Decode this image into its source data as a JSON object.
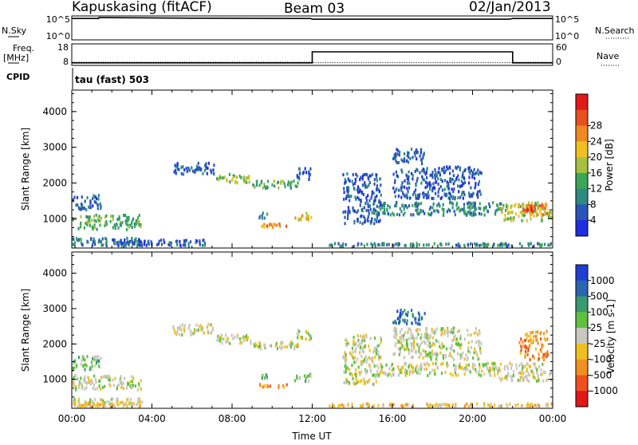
{
  "header": {
    "station": "Kapuskasing (fitACF)",
    "beam": "Beam 03",
    "date": "02/Jan/2013"
  },
  "top_panels": {
    "nsky_label": "N.Sky",
    "nsky_ticks": [
      "10^5",
      "10^0"
    ],
    "nsearch_label": "N.Search",
    "nsearch_ticks": [
      "10^5",
      "10^0"
    ],
    "freq_label_1": "Freq.",
    "freq_label_2": "[MHz]",
    "freq_ticks": [
      "18",
      "8"
    ],
    "nave_label": "Nave",
    "nave_ticks": [
      "60",
      "0"
    ],
    "cpid_label": "CPID",
    "cpid_text": "tau (fast) 503"
  },
  "colors": {
    "power_scale": [
      "#1f2ee0",
      "#2a55b8",
      "#2f8a82",
      "#3aa658",
      "#a8c040",
      "#f0c020",
      "#f08a20",
      "#e85020",
      "#e01a1a"
    ],
    "velocity_scale": [
      "#1e3fd0",
      "#2c66b0",
      "#3a9a70",
      "#60c040",
      "#c8c8c0",
      "#f0c020",
      "#f09020",
      "#f05020",
      "#e01818"
    ]
  },
  "chart_data": [
    {
      "type": "line",
      "title": "N.Sky / N.Search",
      "x": [
        "00:00",
        "01:20",
        "01:21",
        "06:00",
        "11:55",
        "12:00",
        "21:50",
        "22:00",
        "24:00"
      ],
      "series": [
        {
          "name": "N.Sky",
          "values": [
            60000,
            60000,
            100000,
            70000,
            60000,
            40000,
            40000,
            60000,
            60000
          ]
        }
      ]
    },
    {
      "type": "line",
      "title": "Freq. / Nave",
      "x": [
        "00:00",
        "12:00",
        "12:00",
        "22:00",
        "22:00",
        "24:00"
      ],
      "series": [
        {
          "name": "Freq.",
          "values": [
            8.5,
            8.5,
            14.5,
            14.5,
            8.5,
            8.5
          ]
        },
        {
          "name": "Nave",
          "values": [
            5,
            5,
            4,
            4,
            5,
            5
          ]
        }
      ]
    },
    {
      "type": "heatmap",
      "xlabel": "Time UT",
      "ylabel": "Slant Range [km]",
      "xticks": [
        "00:00",
        "04:00",
        "08:00",
        "12:00",
        "16:00",
        "20:00",
        "00:00"
      ],
      "yticks": [
        "1000",
        "2000",
        "3000",
        "4000"
      ],
      "xlim": [
        0,
        24
      ],
      "ylim": [
        180,
        4600
      ],
      "colorbar": {
        "label": "Power [dB]",
        "ticks": [
          "4",
          "8",
          "12",
          "16",
          "20",
          "24",
          "28"
        ]
      },
      "regions": [
        {
          "t0": 0.0,
          "t1": 3.5,
          "r0": 650,
          "r1": 1150,
          "level": 3
        },
        {
          "t0": 0.0,
          "t1": 3.6,
          "r0": 180,
          "r1": 500,
          "level": 2
        },
        {
          "t0": 0.0,
          "t1": 1.5,
          "r0": 1200,
          "r1": 1700,
          "level": 1
        },
        {
          "t0": 2.0,
          "t1": 7.0,
          "r0": 180,
          "r1": 450,
          "level": 1
        },
        {
          "t0": 5.0,
          "t1": 7.2,
          "r0": 2200,
          "r1": 2600,
          "level": 1
        },
        {
          "t0": 7.2,
          "t1": 9.0,
          "r0": 1950,
          "r1": 2300,
          "level": 4
        },
        {
          "t0": 9.0,
          "t1": 11.4,
          "r0": 1800,
          "r1": 2100,
          "level": 3
        },
        {
          "t0": 11.2,
          "t1": 12.0,
          "r0": 2050,
          "r1": 2450,
          "level": 1
        },
        {
          "t0": 9.3,
          "t1": 10.8,
          "r0": 720,
          "r1": 900,
          "level": 6
        },
        {
          "t0": 9.3,
          "t1": 9.8,
          "r0": 950,
          "r1": 1200,
          "level": 2
        },
        {
          "t0": 11.1,
          "t1": 12.0,
          "r0": 900,
          "r1": 1200,
          "level": 5
        },
        {
          "t0": 13.5,
          "t1": 15.5,
          "r0": 800,
          "r1": 2300,
          "level": 1
        },
        {
          "t0": 15.0,
          "t1": 21.5,
          "r0": 1050,
          "r1": 1500,
          "level": 2
        },
        {
          "t0": 16.0,
          "t1": 20.5,
          "r0": 1500,
          "r1": 2500,
          "level": 1
        },
        {
          "t0": 16.0,
          "t1": 17.7,
          "r0": 2500,
          "r1": 3000,
          "level": 1
        },
        {
          "t0": 21.3,
          "t1": 24.0,
          "r0": 900,
          "r1": 1500,
          "level": 4
        },
        {
          "t0": 22.2,
          "t1": 23.8,
          "r0": 1050,
          "r1": 1450,
          "level": 6
        },
        {
          "t0": 22.5,
          "t1": 23.2,
          "r0": 1150,
          "r1": 1350,
          "level": 8
        },
        {
          "t0": 12.8,
          "t1": 24.0,
          "r0": 180,
          "r1": 350,
          "level": 2
        }
      ]
    },
    {
      "type": "heatmap",
      "xlabel": "Time UT",
      "ylabel": "Slant Range [km]",
      "xticks": [
        "00:00",
        "04:00",
        "08:00",
        "12:00",
        "16:00",
        "20:00",
        "00:00"
      ],
      "yticks": [
        "1000",
        "2000",
        "3000",
        "4000"
      ],
      "xlim": [
        0,
        24
      ],
      "ylim": [
        180,
        4600
      ],
      "colorbar": {
        "label": "Velocity [m s-1]",
        "ticks": [
          "1000",
          "500",
          "100",
          "25",
          "-25",
          "-100",
          "-500",
          "-1000"
        ]
      },
      "regions": [
        {
          "t0": 0.0,
          "t1": 3.5,
          "r0": 650,
          "r1": 1150,
          "level": 4
        },
        {
          "t0": 0.0,
          "t1": 3.6,
          "r0": 180,
          "r1": 500,
          "level": 4
        },
        {
          "t0": 0.0,
          "t1": 1.5,
          "r0": 1200,
          "r1": 1700,
          "level": 3
        },
        {
          "t0": 0.0,
          "t1": 3.5,
          "r0": 180,
          "r1": 400,
          "level": 5
        },
        {
          "t0": 5.0,
          "t1": 7.2,
          "r0": 2200,
          "r1": 2600,
          "level": 4
        },
        {
          "t0": 7.2,
          "t1": 9.0,
          "r0": 1950,
          "r1": 2300,
          "level": 4
        },
        {
          "t0": 9.0,
          "t1": 11.4,
          "r0": 1800,
          "r1": 2100,
          "level": 4
        },
        {
          "t0": 11.2,
          "t1": 12.0,
          "r0": 2050,
          "r1": 2450,
          "level": 4
        },
        {
          "t0": 9.3,
          "t1": 10.8,
          "r0": 720,
          "r1": 900,
          "level": 6
        },
        {
          "t0": 9.3,
          "t1": 9.8,
          "r0": 950,
          "r1": 1200,
          "level": 3
        },
        {
          "t0": 11.1,
          "t1": 12.0,
          "r0": 900,
          "r1": 1200,
          "level": 3
        },
        {
          "t0": 13.5,
          "t1": 15.5,
          "r0": 800,
          "r1": 2300,
          "level": 4
        },
        {
          "t0": 15.0,
          "t1": 21.5,
          "r0": 1050,
          "r1": 1500,
          "level": 4
        },
        {
          "t0": 16.0,
          "t1": 20.5,
          "r0": 1500,
          "r1": 2500,
          "level": 4
        },
        {
          "t0": 16.0,
          "t1": 17.7,
          "r0": 2500,
          "r1": 3000,
          "level": 1
        },
        {
          "t0": 21.3,
          "t1": 24.0,
          "r0": 900,
          "r1": 1500,
          "level": 4
        },
        {
          "t0": 22.3,
          "t1": 23.8,
          "r0": 1500,
          "r1": 2400,
          "level": 6
        },
        {
          "t0": 12.8,
          "t1": 24.0,
          "r0": 180,
          "r1": 350,
          "level": 5
        }
      ]
    }
  ]
}
